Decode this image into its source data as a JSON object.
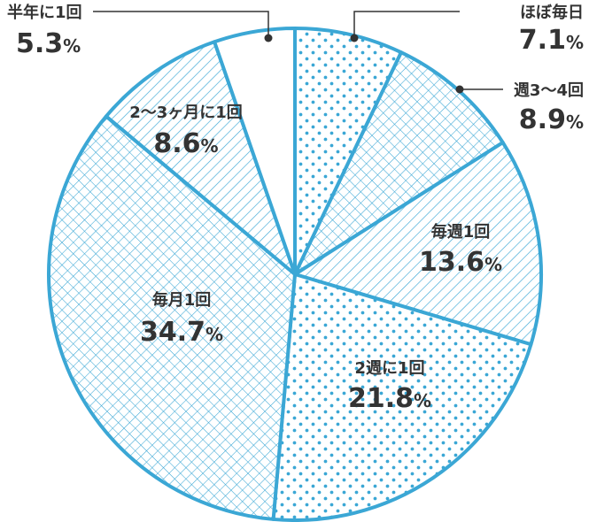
{
  "chart_data": {
    "type": "pie",
    "start_angle_deg": 0,
    "direction": "clockwise",
    "colors": {
      "stroke": "#3ba7d5",
      "pattern": "#3ba7d5",
      "text": "#333333",
      "leader": "#333333"
    },
    "slices": [
      {
        "label": "ほぼ毎日",
        "value": 7.1,
        "display": "7.1",
        "pattern": "dots"
      },
      {
        "label": "週3〜4回",
        "value": 8.9,
        "display": "8.9",
        "pattern": "crosshatch"
      },
      {
        "label": "毎週1回",
        "value": 13.6,
        "display": "13.6",
        "pattern": "diagonal"
      },
      {
        "label": "2週に1回",
        "value": 21.8,
        "display": "21.8",
        "pattern": "dots"
      },
      {
        "label": "毎月1回",
        "value": 34.7,
        "display": "34.7",
        "pattern": "crosshatch"
      },
      {
        "label": "2〜3ヶ月に1回",
        "value": 8.6,
        "display": "8.6",
        "pattern": "diagonal"
      },
      {
        "label": "半年に1回",
        "value": 5.3,
        "display": "5.3",
        "pattern": "none"
      }
    ],
    "unit": "%"
  }
}
